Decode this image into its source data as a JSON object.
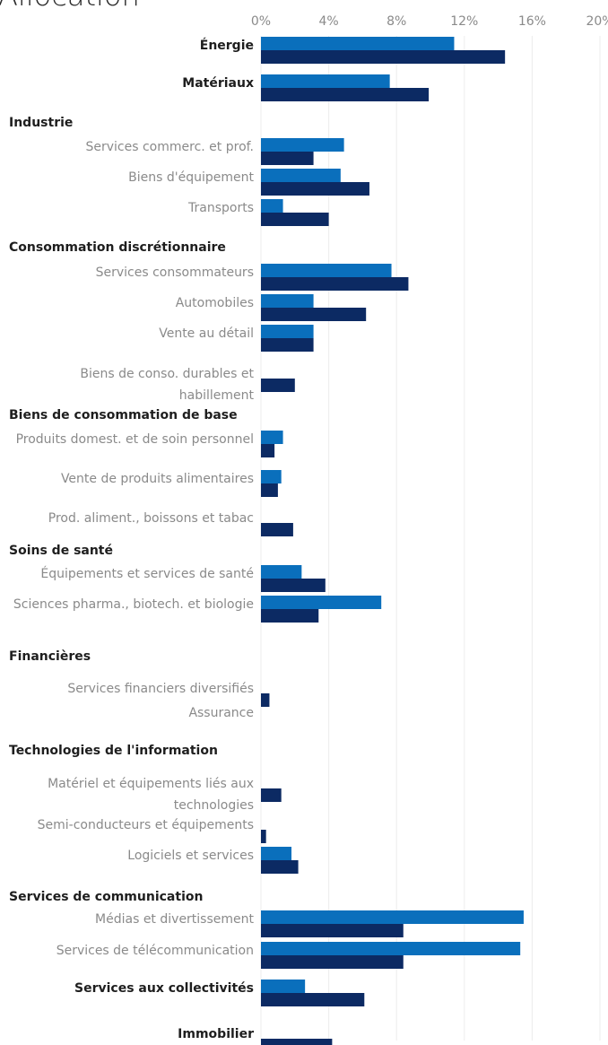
{
  "chart_data": {
    "type": "bar",
    "orientation": "horizontal",
    "title": "Allocation",
    "x_ticks": [
      "0%",
      "4%",
      "8%",
      "12%",
      "16%",
      "20%"
    ],
    "xlim": [
      0,
      20
    ],
    "grid": true,
    "colors": {
      "series_a": "#0a6fbc",
      "series_b": "#0c2a63"
    },
    "rows": [
      {
        "label": "Énergie",
        "kind": "sector",
        "a": 11.4,
        "b": 14.4
      },
      {
        "label": "Matériaux",
        "kind": "sector",
        "a": 7.6,
        "b": 9.9
      },
      {
        "label": "Industrie",
        "kind": "header"
      },
      {
        "label": "Services commerc. et prof.",
        "kind": "sub",
        "a": 4.9,
        "b": 3.1
      },
      {
        "label": "Biens d'équipement",
        "kind": "sub",
        "a": 4.7,
        "b": 6.4
      },
      {
        "label": "Transports",
        "kind": "sub",
        "a": 1.3,
        "b": 4.0
      },
      {
        "label": "Consommation discrétionnaire",
        "kind": "header"
      },
      {
        "label": "Services consommateurs",
        "kind": "sub",
        "a": 7.7,
        "b": 8.7
      },
      {
        "label": "Automobiles",
        "kind": "sub",
        "a": 3.1,
        "b": 6.2
      },
      {
        "label": "Vente au détail",
        "kind": "sub",
        "a": 3.1,
        "b": 3.1
      },
      {
        "label": "Biens de conso. durables et habillement",
        "kind": "sub",
        "a": 0,
        "b": 2.0
      },
      {
        "label": "Biens de consommation de base",
        "kind": "header"
      },
      {
        "label": "Produits domest. et de soin personnel",
        "kind": "sub",
        "a": 1.3,
        "b": 0.8
      },
      {
        "label": "Vente de produits alimentaires",
        "kind": "sub",
        "a": 1.2,
        "b": 1.0
      },
      {
        "label": "Prod. aliment., boissons et tabac",
        "kind": "sub",
        "a": 0,
        "b": 1.9
      },
      {
        "label": "Soins de santé",
        "kind": "header"
      },
      {
        "label": "Équipements et services de santé",
        "kind": "sub",
        "a": 2.4,
        "b": 3.8
      },
      {
        "label": "Sciences pharma., biotech. et biologie",
        "kind": "sub",
        "a": 7.1,
        "b": 3.4
      },
      {
        "label": "Financières",
        "kind": "header"
      },
      {
        "label": "Services financiers diversifiés",
        "kind": "sub",
        "a": 0,
        "b": 0.5
      },
      {
        "label": "Assurance",
        "kind": "sub",
        "a": 0,
        "b": 0
      },
      {
        "label": "Technologies de l'information",
        "kind": "header"
      },
      {
        "label": "Matériel et équipements liés aux technologies",
        "kind": "sub",
        "a": 0,
        "b": 1.2
      },
      {
        "label": "Semi-conducteurs et équipements",
        "kind": "sub",
        "a": 0,
        "b": 0.3
      },
      {
        "label": "Logiciels et services",
        "kind": "sub",
        "a": 1.8,
        "b": 2.2
      },
      {
        "label": "Services de communication",
        "kind": "header"
      },
      {
        "label": "Médias et divertissement",
        "kind": "sub",
        "a": 15.5,
        "b": 8.4
      },
      {
        "label": "Services de télécommunication",
        "kind": "sub",
        "a": 15.3,
        "b": 8.4
      },
      {
        "label": "Services aux collectivités",
        "kind": "sector",
        "a": 2.6,
        "b": 6.1
      },
      {
        "label": "Immobilier",
        "kind": "sector",
        "a": 0,
        "b": 4.2
      }
    ]
  }
}
